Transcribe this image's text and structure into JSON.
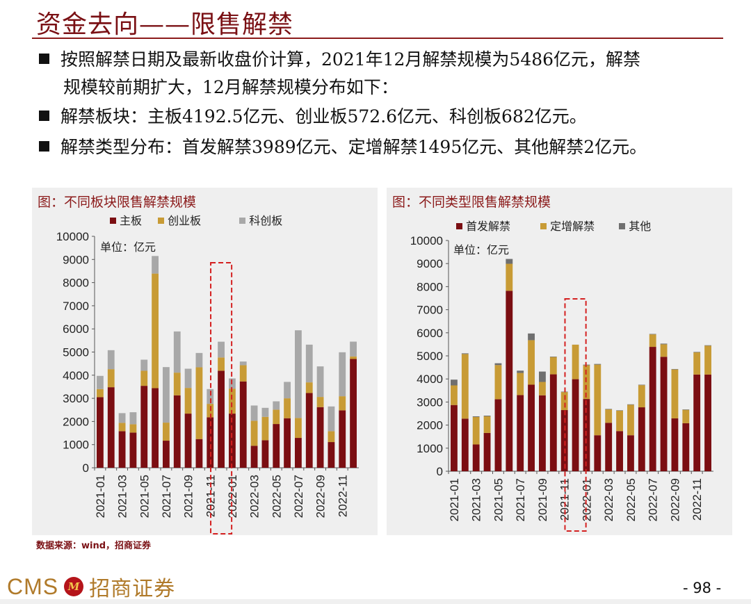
{
  "header": {
    "title": "资金去向——限售解禁"
  },
  "bullets": [
    {
      "line1": "按照解禁日期及最新收盘价计算，2021年12月解禁规模为5486亿元，解禁",
      "line2": "规模较前期扩大，12月解禁规模分布如下："
    },
    {
      "text": "解禁板块：主板4192.5亿元、创业板572.6亿元、科创板682亿元。"
    },
    {
      "text": "解禁类型分布：首发解禁3989亿元、定增解禁1495亿元、其他解禁2亿元。"
    }
  ],
  "colors": {
    "s1": "#7b0e12",
    "s2": "#c89b35",
    "s3": "#a8a8a8",
    "s3b": "#6f6f6f",
    "highlight": "#d42020",
    "panel": "#efefef"
  },
  "chart_data": [
    {
      "type": "bar",
      "stacked": true,
      "title": "图：不同板块限售解禁规模",
      "unit_label": "单位：亿元",
      "categories": [
        "2021-01",
        "2021-02",
        "2021-03",
        "2021-04",
        "2021-05",
        "2021-06",
        "2021-07",
        "2021-08",
        "2021-09",
        "2021-10",
        "2021-11",
        "2021-12",
        "2022-01",
        "2022-02",
        "2022-03",
        "2022-04",
        "2022-05",
        "2022-06",
        "2022-07",
        "2022-08",
        "2022-09",
        "2022-10",
        "2022-11",
        "2022-12"
      ],
      "tick_labels": [
        "2021-01",
        "2021-03",
        "2021-05",
        "2021-07",
        "2021-09",
        "2021-11",
        "2022-01",
        "2022-03",
        "2022-05",
        "2022-07",
        "2022-09",
        "2022-11"
      ],
      "y_ticks": [
        "0",
        "1000",
        "2000",
        "3000",
        "4000",
        "5000",
        "6000",
        "7000",
        "8000",
        "9000",
        "10000"
      ],
      "ylim": [
        0,
        10000
      ],
      "highlight_category": "2021-12",
      "series": [
        {
          "name": "主板",
          "values": [
            3050,
            3480,
            1580,
            1520,
            3540,
            3440,
            1170,
            3130,
            2340,
            1240,
            2180,
            4192.5,
            2340,
            3730,
            950,
            1190,
            1890,
            2140,
            1290,
            3230,
            2620,
            1110,
            2480,
            4700
          ]
        },
        {
          "name": "创业板",
          "values": [
            350,
            780,
            360,
            360,
            650,
            4950,
            780,
            980,
            1110,
            3100,
            580,
            572.6,
            1080,
            700,
            1080,
            1010,
            620,
            860,
            860,
            460,
            440,
            470,
            610,
            110
          ]
        },
        {
          "name": "科创板",
          "values": [
            570,
            820,
            420,
            520,
            480,
            760,
            2400,
            1780,
            830,
            620,
            640,
            682,
            440,
            160,
            660,
            390,
            360,
            710,
            3790,
            1630,
            1320,
            1070,
            1900,
            640
          ]
        }
      ]
    },
    {
      "type": "bar",
      "stacked": true,
      "title": "图：不同类型限售解禁规模",
      "unit_label": "单位：亿元",
      "categories": [
        "2021-01",
        "2021-02",
        "2021-03",
        "2021-04",
        "2021-05",
        "2021-06",
        "2021-07",
        "2021-08",
        "2021-09",
        "2021-10",
        "2021-11",
        "2021-12",
        "2022-01",
        "2022-02",
        "2022-03",
        "2022-04",
        "2022-05",
        "2022-06",
        "2022-07",
        "2022-08",
        "2022-09",
        "2022-10",
        "2022-11",
        "2022-12"
      ],
      "tick_labels": [
        "2021-01",
        "2021-03",
        "2021-05",
        "2021-07",
        "2021-09",
        "2021-11",
        "2022-01",
        "2022-03",
        "2022-05",
        "2022-07",
        "2022-09",
        "2022-11"
      ],
      "y_ticks": [
        "0",
        "1000",
        "2000",
        "3000",
        "4000",
        "5000",
        "6000",
        "7000",
        "8000",
        "9000",
        "10000"
      ],
      "ylim": [
        0,
        10000
      ],
      "highlight_category": "2021-12",
      "series": [
        {
          "name": "首发解禁",
          "values": [
            2870,
            2280,
            1160,
            1660,
            3120,
            7820,
            3300,
            3750,
            3290,
            4200,
            2650,
            3989,
            3130,
            1560,
            2100,
            1740,
            1560,
            2770,
            5390,
            4960,
            2290,
            2080,
            4190,
            4190
          ]
        },
        {
          "name": "定增解禁",
          "values": [
            850,
            2800,
            1190,
            720,
            1480,
            1170,
            960,
            1930,
            580,
            750,
            780,
            1495,
            1460,
            3060,
            580,
            880,
            1320,
            960,
            540,
            540,
            2120,
            580,
            960,
            1250
          ]
        },
        {
          "name": "其他",
          "values": [
            250,
            30,
            30,
            30,
            80,
            210,
            100,
            290,
            450,
            20,
            20,
            2,
            30,
            30,
            20,
            20,
            20,
            20,
            20,
            30,
            20,
            20,
            20,
            20
          ]
        }
      ]
    }
  ],
  "source": "数据来源：wind，招商证券",
  "footer": {
    "logo_text": "CMS",
    "logo_mark": "M",
    "logo_cn": "招商证券",
    "page": "- 98 -"
  }
}
